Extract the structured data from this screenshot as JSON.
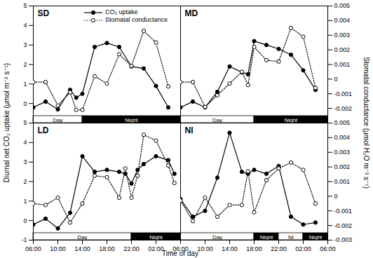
{
  "chart_data": [
    {
      "type": "line",
      "title": "SD",
      "legend": "top",
      "x": [
        6,
        8,
        10,
        12,
        13,
        14,
        16,
        18,
        20,
        22,
        24,
        26,
        28
      ],
      "series": [
        {
          "name": "CO₂ uptake",
          "color": "#000000",
          "marker": "circle",
          "line_style": "solid",
          "axis": "y",
          "values": [
            -0.2,
            0.1,
            -0.3,
            0.7,
            0.3,
            0.5,
            2.9,
            3.1,
            2.9,
            1.9,
            1.8,
            0.9,
            -0.2
          ]
        },
        {
          "name": "Stomatal conductance",
          "color": "#000000",
          "marker": "open circle",
          "line_style": "dotted",
          "axis": "y2",
          "values": [
            -0.0002,
            -0.0002,
            -0.0018,
            -0.0009,
            -0.0021,
            -0.0021,
            0.0002,
            -0.0003,
            0.0017,
            0.0009,
            0.0033,
            0.0025,
            -0.0005
          ]
        }
      ],
      "periods": [
        {
          "label": "Day",
          "start": 6,
          "end": 14,
          "color": "#ffffff"
        },
        {
          "label": "Night",
          "start": 14,
          "end": 30,
          "color": "#000000"
        }
      ],
      "xlim": [
        6,
        30
      ],
      "ylim": [
        -1,
        5
      ],
      "yticks": [
        0,
        1,
        2,
        3,
        4,
        5
      ],
      "y2lim": [
        -0.003,
        0.005
      ]
    },
    {
      "type": "line",
      "title": "MD",
      "x": [
        6,
        8,
        10,
        12,
        14,
        16,
        17,
        18,
        20,
        22,
        24,
        26,
        28
      ],
      "series": [
        {
          "name": "CO₂ uptake",
          "color": "#000000",
          "marker": "circle",
          "line_style": "solid",
          "axis": "y",
          "values": [
            -0.2,
            0.1,
            -0.2,
            0.6,
            1.9,
            1.6,
            1.5,
            3.2,
            3.0,
            2.8,
            2.5,
            1.7,
            0.7
          ]
        },
        {
          "name": "Stomatal conductance",
          "color": "#000000",
          "marker": "open circle",
          "line_style": "dotted",
          "axis": "y2",
          "values": [
            -0.0002,
            -0.0002,
            -0.0019,
            -0.0011,
            -0.0003,
            0.0005,
            -0.0004,
            0.0022,
            0.0013,
            0.0012,
            0.0035,
            0.0029,
            -0.0006
          ]
        }
      ],
      "periods": [
        {
          "label": "Day",
          "start": 6,
          "end": 18,
          "color": "#ffffff"
        },
        {
          "label": "Night",
          "start": 18,
          "end": 30,
          "color": "#000000"
        }
      ],
      "xlim": [
        6,
        30
      ],
      "ylim": [
        -1,
        5
      ],
      "y2lim": [
        -0.003,
        0.005
      ],
      "y2ticks": [
        -0.002,
        -0.001,
        0,
        0.001,
        0.002,
        0.003,
        0.004,
        0.005
      ]
    },
    {
      "type": "line",
      "title": "LD",
      "x": [
        6,
        8,
        10,
        12,
        14,
        16,
        18,
        20,
        21,
        22,
        23,
        24,
        26,
        28,
        29
      ],
      "series": [
        {
          "name": "CO₂ uptake",
          "color": "#000000",
          "marker": "circle",
          "line_style": "solid",
          "axis": "y",
          "values": [
            -0.2,
            0.1,
            -0.4,
            0.4,
            3.3,
            2.5,
            2.6,
            2.5,
            2.4,
            1.9,
            2.6,
            2.9,
            3.3,
            3.1,
            2.4
          ]
        },
        {
          "name": "Stomatal conductance",
          "color": "#000000",
          "marker": "open circle",
          "line_style": "dotted",
          "axis": "y2",
          "values": [
            -0.0005,
            -0.0006,
            -0.0001,
            -0.0018,
            -0.0005,
            0.0014,
            0.0013,
            -0.0001,
            0.0019,
            -0.0001,
            0.0014,
            0.0042,
            0.0038,
            0.0021,
            0.0009
          ]
        }
      ],
      "periods": [
        {
          "label": "Day",
          "start": 6,
          "end": 22,
          "color": "#ffffff"
        },
        {
          "label": "Night",
          "start": 22,
          "end": 30,
          "color": "#000000"
        }
      ],
      "xlim": [
        6,
        30
      ],
      "ylim": [
        -1,
        5
      ],
      "yticks": [
        -1,
        0,
        1,
        2,
        3,
        4,
        5
      ],
      "y2lim": [
        -0.003,
        0.005
      ],
      "xticks": [
        {
          "value": 6,
          "label": "06:00"
        },
        {
          "value": 10,
          "label": "10:00"
        },
        {
          "value": 14,
          "label": "14:00"
        },
        {
          "value": 18,
          "label": "18:00"
        },
        {
          "value": 22,
          "label": "22:00"
        },
        {
          "value": 26,
          "label": "02:00"
        },
        {
          "value": 30,
          "label": "06:00"
        }
      ]
    },
    {
      "type": "line",
      "title": "NI",
      "x": [
        6,
        8,
        10,
        12,
        14,
        16,
        17,
        18,
        20,
        22,
        24,
        26,
        28
      ],
      "series": [
        {
          "name": "CO₂ uptake",
          "color": "#000000",
          "marker": "circle",
          "line_style": "solid",
          "axis": "y",
          "values": [
            1.1,
            0.2,
            0.5,
            2.2,
            4.5,
            2.5,
            2.4,
            2.6,
            2.4,
            2.8,
            0.2,
            -0.2,
            -0.1
          ]
        },
        {
          "name": "Stomatal conductance",
          "color": "#000000",
          "marker": "open circle",
          "line_style": "dotted",
          "axis": "y2",
          "values": [
            -0.0003,
            -0.0017,
            -0.0001,
            -0.0014,
            -0.0006,
            -0.0006,
            0.0017,
            -0.0011,
            0.0011,
            0.0019,
            0.0023,
            0.0018,
            -0.0005
          ]
        }
      ],
      "periods": [
        {
          "label": "Day",
          "start": 6,
          "end": 18,
          "color": "#ffffff"
        },
        {
          "label": "Night",
          "start": 18,
          "end": 22,
          "color": "#000000"
        },
        {
          "label": "NI",
          "start": 22,
          "end": 26,
          "color": "#ffffff"
        },
        {
          "label": "Night",
          "start": 26,
          "end": 30,
          "color": "#000000"
        }
      ],
      "xlim": [
        6,
        30
      ],
      "ylim": [
        -1,
        5
      ],
      "y2lim": [
        -0.003,
        0.005
      ],
      "y2ticks": [
        -0.003,
        -0.002,
        -0.001,
        0,
        0.001,
        0.002,
        0.003,
        0.004,
        0.005
      ],
      "xticks": [
        {
          "value": 10,
          "label": "10:00"
        },
        {
          "value": 14,
          "label": "14:00"
        },
        {
          "value": 18,
          "label": "18:00"
        },
        {
          "value": 22,
          "label": "22:00"
        },
        {
          "value": 26,
          "label": "02:00"
        },
        {
          "value": 30,
          "label": "06:00"
        }
      ]
    }
  ],
  "x_label": "Time of day",
  "y_label": "Diurnal net CO₂ uptake (μmol m⁻² s⁻¹)",
  "y2_label": "Stomatal conductance (μmol H₂O m⁻² s⁻¹)"
}
